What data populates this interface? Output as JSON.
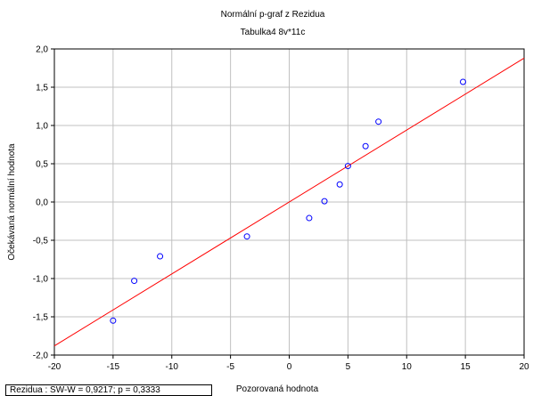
{
  "chart_data": {
    "type": "scatter",
    "title": "Normální p-graf z Rezidua",
    "subtitle": "Tabulka4 8v*11c",
    "xlabel": "Pozorovaná hodnota",
    "ylabel": "Očekávaná normální hodnota",
    "xlim": [
      -20,
      20
    ],
    "ylim": [
      -2.0,
      2.0
    ],
    "xticks": [
      -20,
      -15,
      -10,
      -5,
      0,
      5,
      10,
      15,
      20
    ],
    "xtick_labels": [
      "-20",
      "-15",
      "-10",
      "-5",
      "0",
      "5",
      "10",
      "15",
      "20"
    ],
    "yticks": [
      -2.0,
      -1.5,
      -1.0,
      -0.5,
      0.0,
      0.5,
      1.0,
      1.5,
      2.0
    ],
    "ytick_labels": [
      "-2,0",
      "-1,5",
      "-1,0",
      "-0,5",
      "0,0",
      "0,5",
      "1,0",
      "1,5",
      "2,0"
    ],
    "grid": true,
    "points": [
      {
        "x": -15.0,
        "y": -1.55
      },
      {
        "x": -13.2,
        "y": -1.03
      },
      {
        "x": -11.0,
        "y": -0.71
      },
      {
        "x": -3.6,
        "y": -0.45
      },
      {
        "x": 1.7,
        "y": -0.21
      },
      {
        "x": 3.0,
        "y": 0.01
      },
      {
        "x": 4.3,
        "y": 0.23
      },
      {
        "x": 5.0,
        "y": 0.47
      },
      {
        "x": 6.5,
        "y": 0.73
      },
      {
        "x": 7.6,
        "y": 1.05
      },
      {
        "x": 14.8,
        "y": 1.57
      }
    ],
    "fit_line": {
      "x": [
        -20,
        20
      ],
      "y": [
        -1.88,
        1.88
      ]
    },
    "point_color": "#0000ff",
    "line_color": "#ff0000",
    "grid_color": "#c0c0c0"
  },
  "stats_label": "Rezidua :  SW-W = 0,9217; p = 0,3333"
}
